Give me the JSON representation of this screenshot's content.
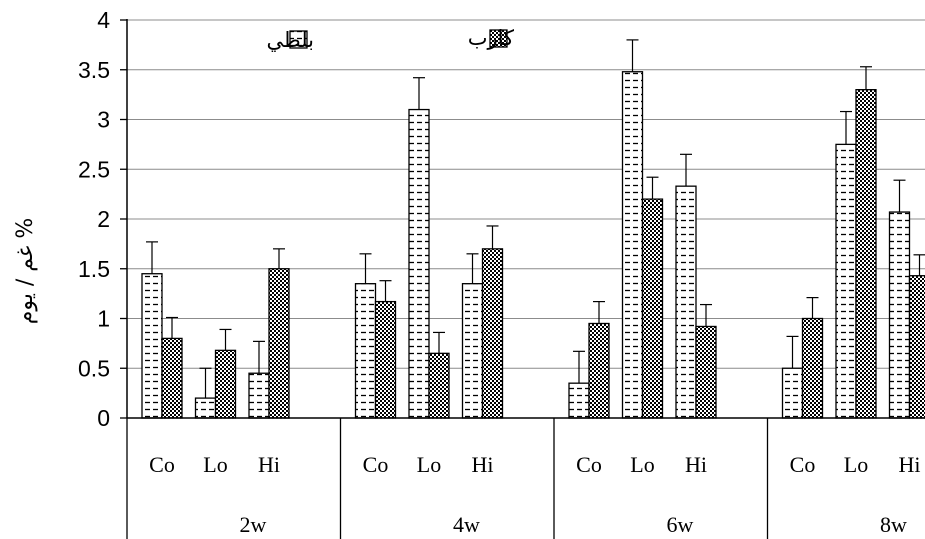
{
  "chart_data": {
    "type": "bar",
    "ylabel": "غم / يوم %",
    "ylim": [
      0,
      4
    ],
    "yticks": [
      "0",
      "0.5",
      "1",
      "1.5",
      "2",
      "2.5",
      "3",
      "3.5",
      "4"
    ],
    "grid": true,
    "legend_position": "top",
    "groups": [
      "2w",
      "4w",
      "6w",
      "8w"
    ],
    "subcategories": [
      "Co",
      "Lo",
      "Hi"
    ],
    "series": [
      {
        "name": "بلطي",
        "pattern": "dashes",
        "values": [
          [
            1.45,
            0.2,
            0.45
          ],
          [
            1.35,
            3.1,
            1.35
          ],
          [
            0.35,
            3.48,
            2.33
          ],
          [
            0.5,
            2.75,
            2.07
          ]
        ],
        "errors": [
          [
            0.32,
            0.3,
            0.32
          ],
          [
            0.3,
            0.32,
            0.3
          ],
          [
            0.32,
            0.32,
            0.32
          ],
          [
            0.32,
            0.33,
            0.32
          ]
        ]
      },
      {
        "name": "كارب",
        "pattern": "checker",
        "values": [
          [
            0.8,
            0.68,
            1.5
          ],
          [
            1.17,
            0.65,
            1.7
          ],
          [
            0.95,
            2.2,
            0.92
          ],
          [
            1.0,
            3.3,
            1.43
          ]
        ],
        "errors": [
          [
            0.21,
            0.21,
            0.2
          ],
          [
            0.21,
            0.21,
            0.23
          ],
          [
            0.22,
            0.22,
            0.22
          ],
          [
            0.21,
            0.23,
            0.21
          ]
        ]
      }
    ]
  }
}
